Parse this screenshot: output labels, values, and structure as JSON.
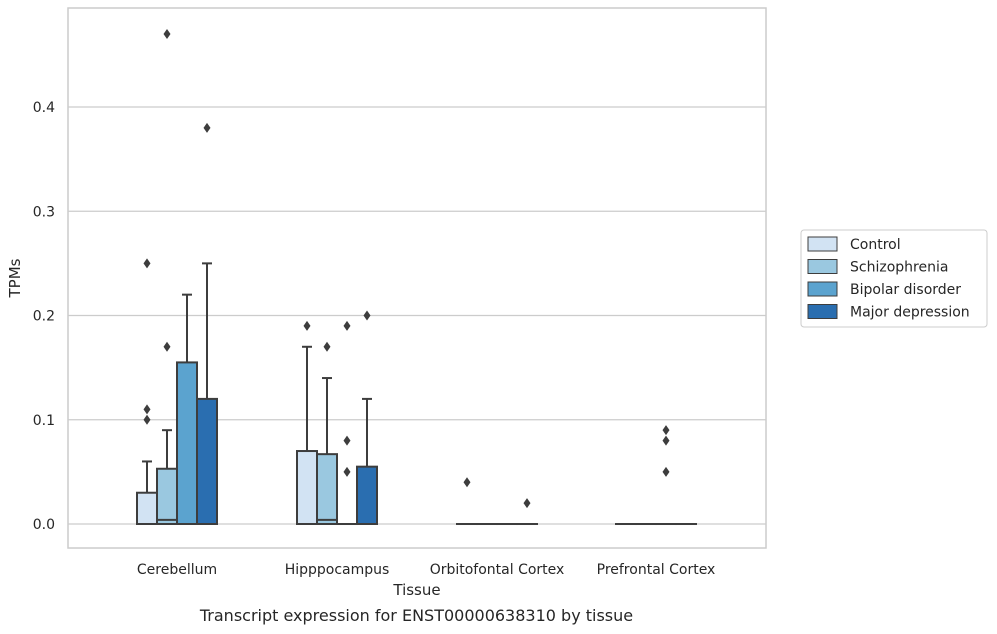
{
  "caption": "Transcript expression for ENST00000638310 by tissue",
  "chart_data": {
    "type": "box",
    "title": "",
    "xlabel": "Tissue",
    "ylabel": "TPMs",
    "ylim": [
      -0.023,
      0.495
    ],
    "yticks": [
      0.0,
      0.1,
      0.2,
      0.3,
      0.4
    ],
    "ytick_labels": [
      "0.0",
      "0.1",
      "0.2",
      "0.3",
      "0.4"
    ],
    "grid": "horizontal",
    "legend_position": "right",
    "categories": [
      "Cerebellum",
      "Hipppocampus",
      "Orbitofontal Cortex",
      "Prefrontal Cortex"
    ],
    "series": [
      {
        "name": "Control",
        "color": "#d2e3f3",
        "boxes": [
          {
            "q1": 0.0,
            "median": 0.0,
            "q3": 0.03,
            "whisker_low": 0.0,
            "whisker_high": 0.06,
            "outliers": [
              0.1,
              0.11,
              0.25
            ]
          },
          {
            "q1": 0.0,
            "median": 0.0,
            "q3": 0.07,
            "whisker_low": 0.0,
            "whisker_high": 0.17,
            "outliers": [
              0.19
            ]
          },
          {
            "q1": 0.0,
            "median": 0.0,
            "q3": 0.0,
            "whisker_low": 0.0,
            "whisker_high": 0.0,
            "outliers": [
              0.04
            ]
          },
          {
            "q1": 0.0,
            "median": 0.0,
            "q3": 0.0,
            "whisker_low": 0.0,
            "whisker_high": 0.0,
            "outliers": []
          }
        ]
      },
      {
        "name": "Schizophrenia",
        "color": "#9ac8e0",
        "boxes": [
          {
            "q1": 0.0,
            "median": 0.004,
            "q3": 0.053,
            "whisker_low": 0.0,
            "whisker_high": 0.09,
            "outliers": [
              0.17,
              0.47
            ]
          },
          {
            "q1": 0.0,
            "median": 0.004,
            "q3": 0.067,
            "whisker_low": 0.0,
            "whisker_high": 0.14,
            "outliers": [
              0.17
            ]
          },
          {
            "q1": 0.0,
            "median": 0.0,
            "q3": 0.0,
            "whisker_low": 0.0,
            "whisker_high": 0.0,
            "outliers": []
          },
          {
            "q1": 0.0,
            "median": 0.0,
            "q3": 0.0,
            "whisker_low": 0.0,
            "whisker_high": 0.0,
            "outliers": []
          }
        ]
      },
      {
        "name": "Bipolar disorder",
        "color": "#5ba3cf",
        "boxes": [
          {
            "q1": 0.0,
            "median": 0.0,
            "q3": 0.155,
            "whisker_low": 0.0,
            "whisker_high": 0.22,
            "outliers": []
          },
          {
            "q1": 0.0,
            "median": 0.0,
            "q3": 0.0,
            "whisker_low": 0.0,
            "whisker_high": 0.0,
            "outliers": [
              0.05,
              0.08,
              0.19
            ]
          },
          {
            "q1": 0.0,
            "median": 0.0,
            "q3": 0.0,
            "whisker_low": 0.0,
            "whisker_high": 0.0,
            "outliers": []
          },
          {
            "q1": 0.0,
            "median": 0.0,
            "q3": 0.0,
            "whisker_low": 0.0,
            "whisker_high": 0.0,
            "outliers": [
              0.05,
              0.08,
              0.09
            ]
          }
        ]
      },
      {
        "name": "Major depression",
        "color": "#2a6eb0",
        "boxes": [
          {
            "q1": 0.0,
            "median": 0.0,
            "q3": 0.12,
            "whisker_low": 0.0,
            "whisker_high": 0.25,
            "outliers": [
              0.38
            ]
          },
          {
            "q1": 0.0,
            "median": 0.0,
            "q3": 0.055,
            "whisker_low": 0.0,
            "whisker_high": 0.12,
            "outliers": [
              0.2
            ]
          },
          {
            "q1": 0.0,
            "median": 0.0,
            "q3": 0.0,
            "whisker_low": 0.0,
            "whisker_high": 0.0,
            "outliers": [
              0.02
            ]
          },
          {
            "q1": 0.0,
            "median": 0.0,
            "q3": 0.0,
            "whisker_low": 0.0,
            "whisker_high": 0.0,
            "outliers": []
          }
        ]
      }
    ]
  }
}
